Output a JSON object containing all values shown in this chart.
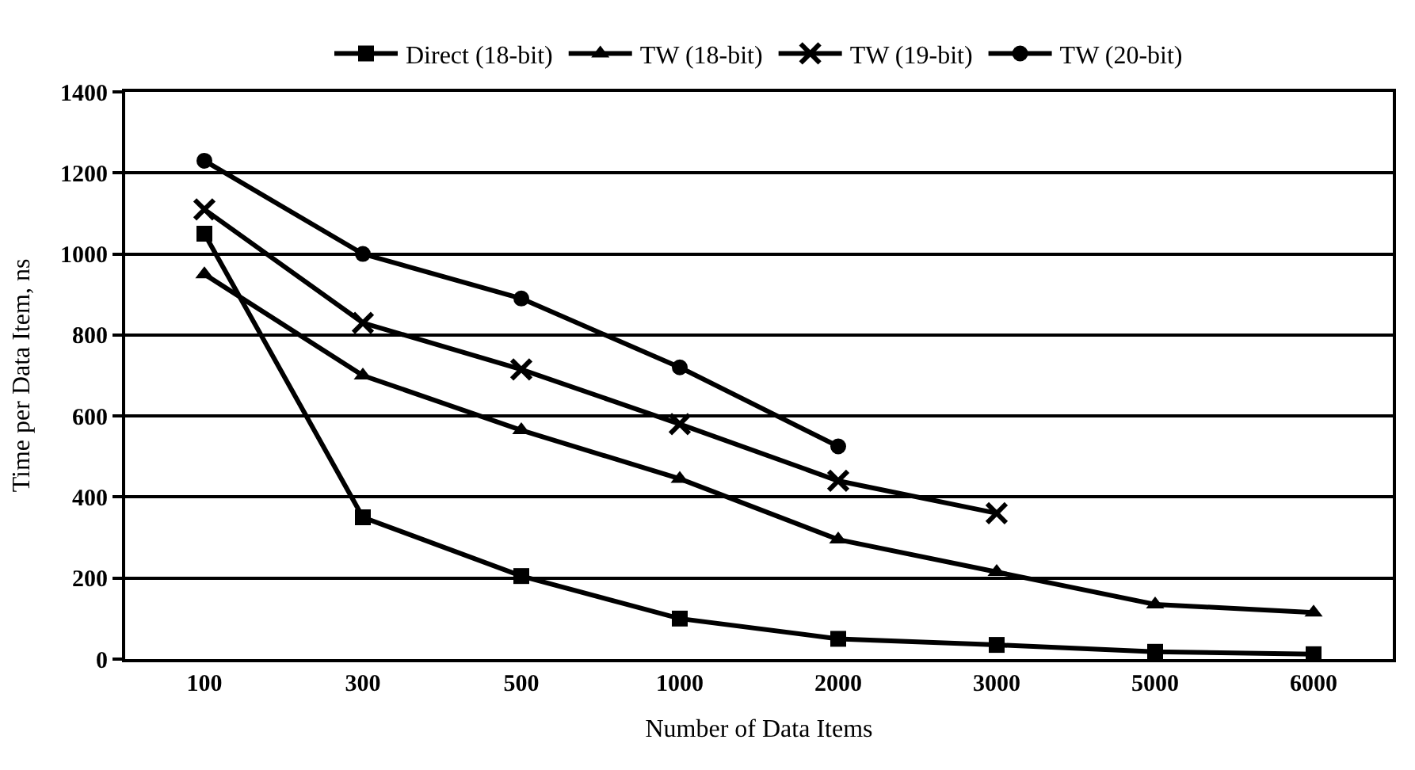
{
  "chart_data": {
    "type": "line",
    "xlabel": "Number of Data Items",
    "ylabel": "Time per Data Item, ns",
    "categories": [
      "100",
      "300",
      "500",
      "1000",
      "2000",
      "3000",
      "5000",
      "6000"
    ],
    "series": [
      {
        "name": "Direct (18-bit)",
        "color": "#000000",
        "marker": "square",
        "values": [
          1050,
          350,
          205,
          100,
          50,
          35,
          18,
          12
        ]
      },
      {
        "name": "TW (18-bit)",
        "color": "#000000",
        "marker": "triangle",
        "values": [
          950,
          700,
          565,
          445,
          295,
          215,
          135,
          115
        ]
      },
      {
        "name": "TW (19-bit)",
        "color": "#000000",
        "marker": "cross",
        "values": [
          1110,
          830,
          715,
          580,
          440,
          360,
          null,
          null
        ]
      },
      {
        "name": "TW (20-bit)",
        "color": "#000000",
        "marker": "circle",
        "values": [
          1230,
          1000,
          890,
          720,
          525,
          null,
          null,
          null
        ]
      }
    ],
    "ylim": [
      0,
      1400
    ],
    "yticks": [
      0,
      200,
      400,
      600,
      800,
      1000,
      1200,
      1400
    ],
    "grid": "y",
    "legend": "top",
    "line_style": "solid"
  }
}
